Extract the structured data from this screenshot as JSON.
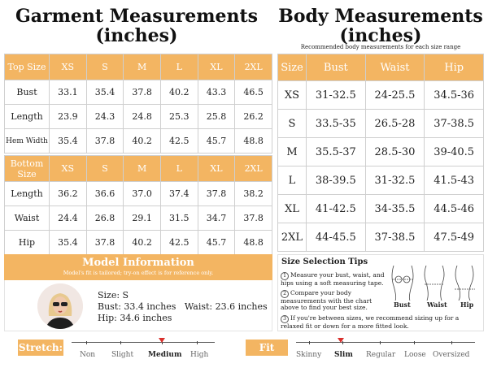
{
  "garment": {
    "title_line1": "Garment Measurements",
    "title_line2": "(inches)",
    "top_header": [
      "Top Size",
      "XS",
      "S",
      "M",
      "L",
      "XL",
      "2XL"
    ],
    "top_rows": [
      [
        "Bust",
        "33.1",
        "35.4",
        "37.8",
        "40.2",
        "43.3",
        "46.5"
      ],
      [
        "Length",
        "23.9",
        "24.3",
        "24.8",
        "25.3",
        "25.8",
        "26.2"
      ],
      [
        "Hem Width",
        "35.4",
        "37.8",
        "40.2",
        "42.5",
        "45.7",
        "48.8"
      ]
    ],
    "bottom_header": [
      "Bottom Size",
      "XS",
      "S",
      "M",
      "L",
      "XL",
      "2XL"
    ],
    "bottom_rows": [
      [
        "Length",
        "36.2",
        "36.6",
        "37.0",
        "37.4",
        "37.8",
        "38.2"
      ],
      [
        "Waist",
        "24.4",
        "26.8",
        "29.1",
        "31.5",
        "34.7",
        "37.8"
      ],
      [
        "Hip",
        "35.4",
        "37.8",
        "40.2",
        "42.5",
        "45.7",
        "48.8"
      ]
    ]
  },
  "body": {
    "title_line1": "Body Measurements",
    "title_line2": "(inches)",
    "subtitle": "Recommended body measurements for each size range",
    "header": [
      "Size",
      "Bust",
      "Waist",
      "Hip"
    ],
    "rows": [
      [
        "XS",
        "31-32.5",
        "24-25.5",
        "34.5-36"
      ],
      [
        "S",
        "33.5-35",
        "26.5-28",
        "37-38.5"
      ],
      [
        "M",
        "35.5-37",
        "28.5-30",
        "39-40.5"
      ],
      [
        "L",
        "38-39.5",
        "31-32.5",
        "41.5-43"
      ],
      [
        "XL",
        "41-42.5",
        "34-35.5",
        "44.5-46"
      ],
      [
        "2XL",
        "44-45.5",
        "37-38.5",
        "47.5-49"
      ]
    ]
  },
  "model": {
    "title": "Model Information",
    "note": "Model's fit is tailored; try-on effect is for reference only.",
    "size": "Size: S",
    "bust_waist": "Bust: 33.4 inches   Waist: 23.6 inches",
    "hip": "Hip: 34.6 inches"
  },
  "tips": {
    "title": "Size Selection Tips",
    "items": [
      "Measure your bust, waist, and hips using a soft measuring tape.",
      "Compare your body measurements with the chart above to find your best size.",
      "If you're between sizes, we recommend sizing up for a relaxed fit or down for a more fitted look."
    ],
    "figure_labels": [
      "Bust",
      "Waist",
      "Hip"
    ]
  },
  "stretch": {
    "label": "Stretch:",
    "options": [
      "Non",
      "Slight",
      "Medium",
      "High"
    ],
    "selected": "Medium"
  },
  "fit": {
    "label": "Fit Type:",
    "options": [
      "Skinny",
      "Slim",
      "Regular",
      "Loose",
      "Oversized"
    ],
    "selected": "Slim"
  },
  "colors": {
    "accent": "#f3b562",
    "marker": "#d9302c"
  }
}
